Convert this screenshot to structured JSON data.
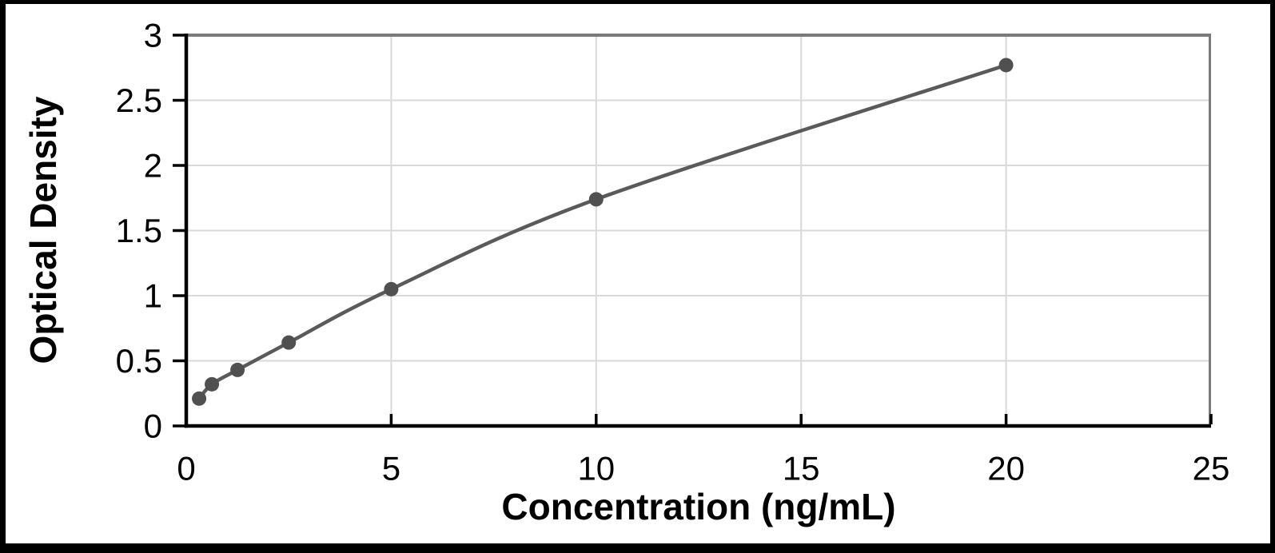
{
  "chart_data": {
    "type": "scatter",
    "title": "",
    "xlabel": "Concentration (ng/mL)",
    "ylabel": "Optical Density",
    "x": [
      0.313,
      0.625,
      1.25,
      2.5,
      5,
      10,
      20
    ],
    "y": [
      0.21,
      0.32,
      0.43,
      0.64,
      1.05,
      1.74,
      2.77
    ],
    "xlim": [
      0,
      25
    ],
    "ylim": [
      0,
      3
    ],
    "x_ticks": [
      0,
      5,
      10,
      15,
      20,
      25
    ],
    "x_tick_labels": [
      "0",
      "5",
      "10",
      "15",
      "20",
      "25"
    ],
    "y_ticks": [
      0,
      0.5,
      1,
      1.5,
      2,
      2.5,
      3
    ],
    "y_tick_labels": [
      "0",
      "0.5",
      "1",
      "1.5",
      "2",
      "2.5",
      "3"
    ],
    "grid": true,
    "legend": "none",
    "line_style": "smooth",
    "marker_style": "filled-circle",
    "colors": {
      "curve": "#5a5a5a",
      "marker": "#505050",
      "gridline": "#d9d9d9",
      "axis": "#000000",
      "plot_border": "#7a7a7a",
      "frame": "#000000",
      "background": "#ffffff",
      "text": "#000000"
    }
  }
}
